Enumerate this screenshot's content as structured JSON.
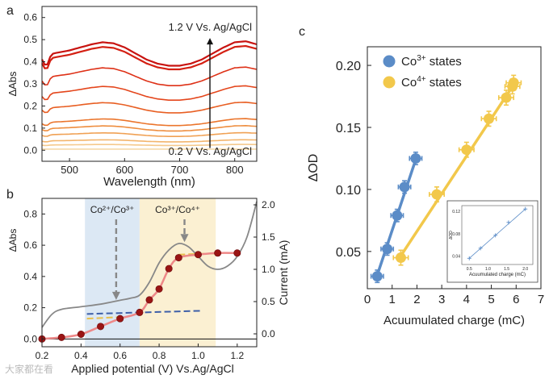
{
  "panel_labels": {
    "a": "a",
    "b": "b",
    "c": "c"
  },
  "watermark": "大家都在看",
  "chart_data": [
    {
      "id": "a",
      "type": "line",
      "xlabel": "Wavelength (nm)",
      "ylabel": "ΔAbs",
      "xlim": [
        450,
        840
      ],
      "ylim": [
        -0.05,
        0.65
      ],
      "xticks": [
        500,
        600,
        700,
        800
      ],
      "yticks": [
        0.0,
        0.1,
        0.2,
        0.3,
        0.4,
        0.5,
        0.6
      ],
      "ytick_labels": [
        "0.0",
        "0.1",
        "0.2",
        "0.3",
        "0.4",
        "0.5",
        "0.6"
      ],
      "annotation_top": "1.2 V Vs. Ag/AgCl",
      "annotation_bottom": "0.2 V Vs. Ag/AgCl",
      "arrow_x": 755,
      "series_colors": [
        "#f5d8a8",
        "#f5c98c",
        "#f3b56d",
        "#f0a154",
        "#ee8d3e",
        "#eb752c",
        "#e85e22",
        "#e4461c",
        "#de3117",
        "#d42013",
        "#c81310"
      ],
      "profile_x": [
        450,
        460,
        480,
        500,
        520,
        540,
        560,
        580,
        600,
        620,
        640,
        660,
        680,
        700,
        720,
        740,
        760,
        780,
        800,
        820,
        840
      ],
      "profile_shape": [
        0.9,
        0.93,
        0.95,
        0.97,
        1.0,
        1.03,
        1.05,
        1.04,
        1.0,
        0.94,
        0.88,
        0.84,
        0.82,
        0.82,
        0.84,
        0.88,
        0.94,
        1.0,
        1.05,
        1.06,
        1.03
      ],
      "series_amplitudes": [
        0.0,
        0.02,
        0.04,
        0.07,
        0.1,
        0.13,
        0.2,
        0.27,
        0.35,
        0.44,
        0.46
      ],
      "dip_x": 458,
      "dip_depth": 0.05
    },
    {
      "id": "b",
      "type": "line",
      "xlabel": "Applied potential (V) Vs.Ag/AgCl",
      "ylabel_left": "ΔAbs",
      "ylabel_right": "Current (mA)",
      "xlim": [
        0.2,
        1.3
      ],
      "ylim_left": [
        -0.05,
        0.9
      ],
      "ylim_right": [
        -0.2,
        2.1
      ],
      "xticks": [
        0.2,
        0.4,
        0.6,
        0.8,
        1.0,
        1.2
      ],
      "xtick_labels": [
        "0.2",
        "0.4",
        "0.6",
        "0.8",
        "1.0",
        "1.2"
      ],
      "yticks_left": [
        0.0,
        0.2,
        0.4,
        0.6,
        0.8
      ],
      "ytick_labels_left": [
        "0.0",
        "0.2",
        "0.4",
        "0.6",
        "0.8"
      ],
      "yticks_right": [
        0.0,
        0.5,
        1.0,
        1.5,
        2.0
      ],
      "ytick_labels_right": [
        "0.0",
        "0.5",
        "1.0",
        "1.5",
        "2.0"
      ],
      "regions": [
        {
          "x0": 0.42,
          "x1": 0.7,
          "color": "#dce8f4",
          "label": "Co²⁺/Co³⁺",
          "arrow_x": 0.58,
          "arrow_y_end": 0.25
        },
        {
          "x0": 0.7,
          "x1": 1.09,
          "color": "#fbf0d2",
          "label": "Co³⁺/Co⁴⁺",
          "arrow_x": 0.93,
          "arrow_y_end": 0.62
        }
      ],
      "dabs_points": {
        "x": [
          0.2,
          0.3,
          0.4,
          0.5,
          0.6,
          0.7,
          0.75,
          0.8,
          0.85,
          0.9,
          1.0,
          1.1,
          1.2
        ],
        "y": [
          0.0,
          0.01,
          0.03,
          0.08,
          0.13,
          0.17,
          0.25,
          0.32,
          0.45,
          0.52,
          0.54,
          0.55,
          0.55
        ],
        "color": "#9a1414"
      },
      "fit_line": {
        "x": [
          0.2,
          0.3,
          0.4,
          0.5,
          0.6,
          0.7,
          0.75,
          0.8,
          0.85,
          0.9,
          1.0,
          1.1,
          1.2
        ],
        "y": [
          0.0,
          0.01,
          0.03,
          0.08,
          0.13,
          0.17,
          0.25,
          0.32,
          0.45,
          0.52,
          0.54,
          0.55,
          0.55
        ],
        "color": "#ee8888"
      },
      "current": {
        "x": [
          0.2,
          0.25,
          0.3,
          0.4,
          0.5,
          0.6,
          0.65,
          0.7,
          0.75,
          0.8,
          0.85,
          0.9,
          0.95,
          1.0,
          1.05,
          1.1,
          1.15,
          1.2,
          1.25,
          1.3
        ],
        "y": [
          0.1,
          0.3,
          0.38,
          0.42,
          0.46,
          0.52,
          0.55,
          0.6,
          0.8,
          1.1,
          1.3,
          1.4,
          1.35,
          1.2,
          1.05,
          1.0,
          1.05,
          1.2,
          1.5,
          2.05
        ],
        "color": "#888888"
      },
      "dash_co3": {
        "x": [
          0.43,
          1.01
        ],
        "y": [
          0.16,
          0.18
        ],
        "color": "#3d5fa8"
      },
      "dash_co4_low": {
        "x": [
          0.43,
          0.6
        ],
        "y": [
          0.13,
          0.14
        ],
        "color": "#e8c04c"
      },
      "dash_co4_high": {
        "x": [
          0.9,
          1.13
        ],
        "y": [
          0.54,
          0.55
        ],
        "color": "#e8c04c"
      }
    },
    {
      "id": "c",
      "type": "scatter",
      "xlabel": "Acuumulated charge (mC)",
      "ylabel": "ΔOD",
      "xlim": [
        0,
        7
      ],
      "ylim": [
        0.02,
        0.215
      ],
      "xticks": [
        0,
        1,
        2,
        3,
        4,
        5,
        6,
        7
      ],
      "yticks": [
        0.05,
        0.1,
        0.15,
        0.2
      ],
      "ytick_labels": [
        "0.05",
        "0.10",
        "0.15",
        "0.20"
      ],
      "series": [
        {
          "name": "Co3+ states",
          "label_base": "Co",
          "label_sup": "3+",
          "label_rest": " states",
          "color": "#5b8cc7",
          "x": [
            0.4,
            0.8,
            1.2,
            1.5,
            1.95
          ],
          "y": [
            0.03,
            0.052,
            0.079,
            0.102,
            0.125
          ],
          "xerr": [
            0.25,
            0.25,
            0.25,
            0.25,
            0.25
          ],
          "yerr": [
            0.005,
            0.005,
            0.005,
            0.005,
            0.005
          ],
          "fit": {
            "x": [
              0.35,
              2.0
            ],
            "y": [
              0.028,
              0.127
            ]
          }
        },
        {
          "name": "Co4+ states",
          "label_base": "Co",
          "label_sup": "4+",
          "label_rest": " states",
          "color": "#f2c84b",
          "x": [
            1.35,
            2.8,
            4.0,
            4.9,
            5.6,
            5.85,
            5.9
          ],
          "y": [
            0.045,
            0.096,
            0.132,
            0.157,
            0.174,
            0.183,
            0.186
          ],
          "xerr": [
            0.3,
            0.3,
            0.3,
            0.3,
            0.3,
            0.3,
            0.3
          ],
          "yerr": [
            0.006,
            0.006,
            0.006,
            0.006,
            0.006,
            0.006,
            0.006
          ],
          "fit": {
            "x": [
              1.3,
              5.95
            ],
            "y": [
              0.045,
              0.186
            ]
          }
        }
      ],
      "inset": {
        "xlabel": "Acuumulated charge (mC)",
        "ylabel": "ΔOD",
        "xlim": [
          0.3,
          2.2
        ],
        "ylim": [
          0.025,
          0.13
        ],
        "xticks": [
          0.5,
          1.0,
          1.5,
          2.0
        ],
        "xtick_labels": [
          "0.5",
          "1.0",
          "1.5",
          "2.0"
        ],
        "yticks": [
          0.04,
          0.08,
          0.12
        ],
        "ytick_labels": [
          "0.04",
          "0.08",
          "0.12"
        ],
        "x": [
          0.5,
          0.8,
          1.2,
          1.55,
          2.0
        ],
        "y": [
          0.036,
          0.054,
          0.077,
          0.1,
          0.124
        ],
        "color": "#5b8cc7"
      }
    }
  ]
}
